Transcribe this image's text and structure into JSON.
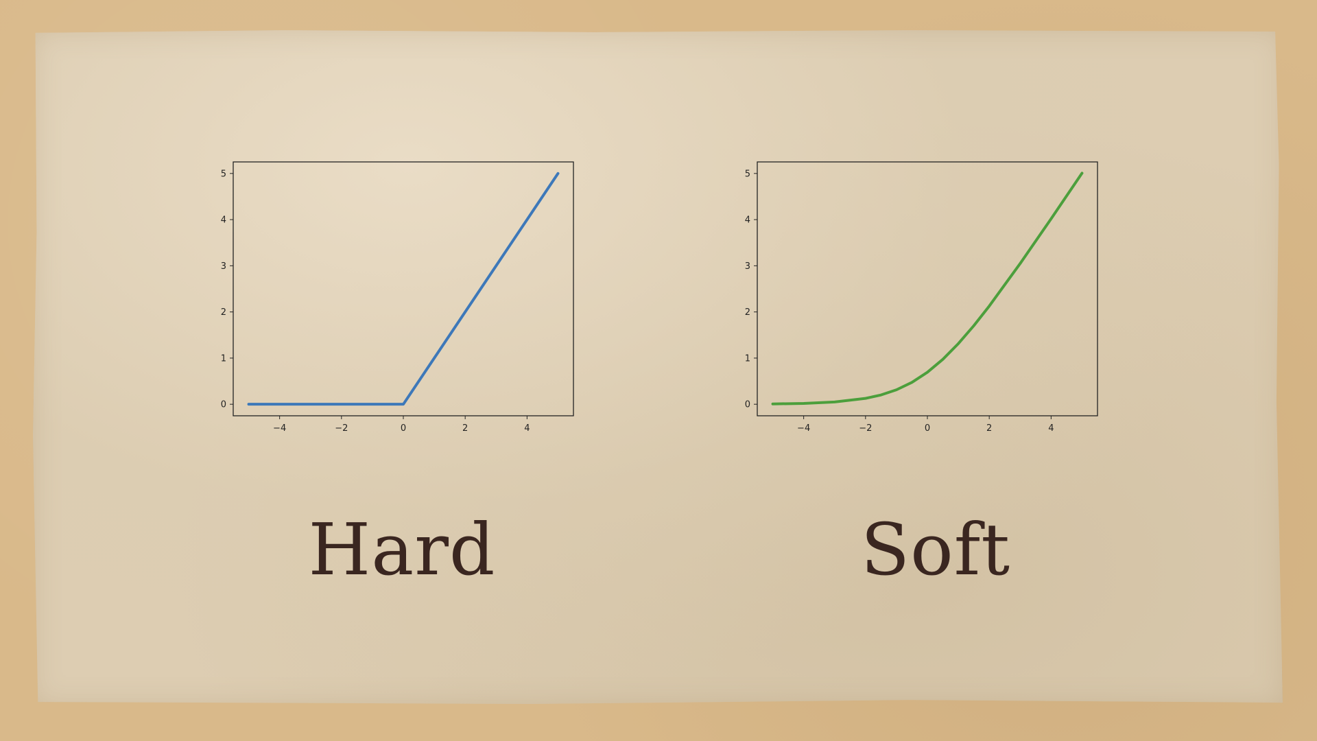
{
  "slide": {
    "captions": {
      "left": "Hard",
      "right": "Soft"
    }
  },
  "chart_data": [
    {
      "type": "line",
      "title": "",
      "xlabel": "",
      "ylabel": "",
      "xlim": [
        -5.5,
        5.5
      ],
      "ylim": [
        -0.25,
        5.25
      ],
      "xticks": [
        -4,
        -2,
        0,
        2,
        4
      ],
      "yticks": [
        0,
        1,
        2,
        3,
        4,
        5
      ],
      "xtick_labels": [
        "−4",
        "−2",
        "0",
        "2",
        "4"
      ],
      "ytick_labels": [
        "0",
        "1",
        "2",
        "3",
        "4",
        "5"
      ],
      "grid": false,
      "series": [
        {
          "color": "#3d78b9",
          "x": [
            -5,
            -4,
            -3,
            -2,
            -1,
            0,
            1,
            2,
            3,
            4,
            5
          ],
          "y": [
            0,
            0,
            0,
            0,
            0,
            0,
            1,
            2,
            3,
            4,
            5
          ]
        }
      ]
    },
    {
      "type": "line",
      "title": "",
      "xlabel": "",
      "ylabel": "",
      "xlim": [
        -5.5,
        5.5
      ],
      "ylim": [
        -0.25,
        5.25
      ],
      "xticks": [
        -4,
        -2,
        0,
        2,
        4
      ],
      "yticks": [
        0,
        1,
        2,
        3,
        4,
        5
      ],
      "xtick_labels": [
        "−4",
        "−2",
        "0",
        "2",
        "4"
      ],
      "ytick_labels": [
        "0",
        "1",
        "2",
        "3",
        "4",
        "5"
      ],
      "grid": false,
      "series": [
        {
          "color": "#4c9f3c",
          "x": [
            -5,
            -4,
            -3,
            -2,
            -1.5,
            -1,
            -0.5,
            0,
            0.5,
            1,
            1.5,
            2,
            3,
            4,
            5
          ],
          "y": [
            0.0067,
            0.018,
            0.049,
            0.127,
            0.201,
            0.313,
            0.474,
            0.693,
            0.974,
            1.313,
            1.701,
            2.127,
            3.049,
            4.018,
            5.007
          ]
        }
      ]
    }
  ]
}
